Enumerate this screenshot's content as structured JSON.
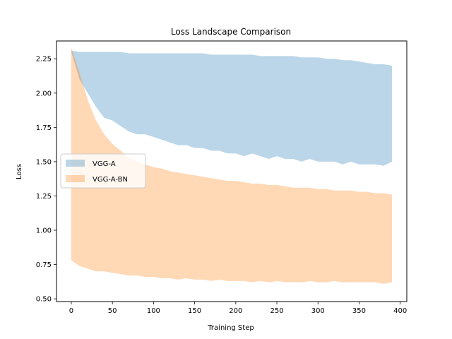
{
  "chart_data": {
    "type": "area",
    "title": "Loss Landscape Comparison",
    "xlabel": "Training Step",
    "ylabel": "Loss",
    "xlim": [
      -18,
      408
    ],
    "ylim": [
      0.48,
      2.38
    ],
    "xticks": [
      0,
      50,
      100,
      150,
      200,
      250,
      300,
      350,
      400
    ],
    "yticks": [
      0.5,
      0.75,
      1.0,
      1.25,
      1.5,
      1.75,
      2.0,
      2.25
    ],
    "ytick_labels": [
      "0.50",
      "0.75",
      "1.00",
      "1.25",
      "1.50",
      "1.75",
      "2.00",
      "2.25"
    ],
    "grid": false,
    "legend_position": "center-left",
    "series": [
      {
        "name": "VGG-A",
        "color": "#1f77b4",
        "alpha": 0.3,
        "x": [
          0,
          10,
          20,
          30,
          40,
          50,
          60,
          70,
          80,
          90,
          100,
          110,
          120,
          130,
          140,
          150,
          160,
          170,
          180,
          190,
          200,
          210,
          220,
          230,
          240,
          250,
          260,
          270,
          280,
          290,
          300,
          310,
          320,
          330,
          340,
          350,
          360,
          370,
          380,
          390
        ],
        "upper": [
          2.31,
          2.3,
          2.3,
          2.3,
          2.3,
          2.3,
          2.3,
          2.29,
          2.29,
          2.29,
          2.29,
          2.29,
          2.29,
          2.29,
          2.29,
          2.29,
          2.29,
          2.28,
          2.28,
          2.28,
          2.28,
          2.28,
          2.28,
          2.27,
          2.27,
          2.27,
          2.27,
          2.27,
          2.26,
          2.26,
          2.26,
          2.25,
          2.25,
          2.24,
          2.24,
          2.23,
          2.22,
          2.21,
          2.21,
          2.2
        ],
        "lower": [
          2.3,
          2.1,
          2.0,
          1.9,
          1.82,
          1.8,
          1.76,
          1.72,
          1.7,
          1.7,
          1.68,
          1.66,
          1.64,
          1.62,
          1.62,
          1.6,
          1.6,
          1.58,
          1.58,
          1.56,
          1.56,
          1.54,
          1.56,
          1.54,
          1.52,
          1.54,
          1.52,
          1.52,
          1.5,
          1.52,
          1.5,
          1.5,
          1.5,
          1.48,
          1.5,
          1.48,
          1.48,
          1.48,
          1.47,
          1.5
        ]
      },
      {
        "name": "VGG-A-BN",
        "color": "#ff7f0e",
        "alpha": 0.3,
        "x": [
          0,
          10,
          20,
          30,
          40,
          50,
          60,
          70,
          80,
          90,
          100,
          110,
          120,
          130,
          140,
          150,
          160,
          170,
          180,
          190,
          200,
          210,
          220,
          230,
          240,
          250,
          260,
          270,
          280,
          290,
          300,
          310,
          320,
          330,
          340,
          350,
          360,
          370,
          380,
          390
        ],
        "upper": [
          2.33,
          2.15,
          1.95,
          1.8,
          1.7,
          1.63,
          1.58,
          1.53,
          1.5,
          1.48,
          1.46,
          1.45,
          1.43,
          1.42,
          1.41,
          1.4,
          1.39,
          1.38,
          1.37,
          1.36,
          1.36,
          1.35,
          1.34,
          1.34,
          1.33,
          1.33,
          1.32,
          1.31,
          1.31,
          1.31,
          1.3,
          1.3,
          1.29,
          1.29,
          1.29,
          1.28,
          1.28,
          1.27,
          1.27,
          1.26
        ],
        "lower": [
          0.78,
          0.74,
          0.72,
          0.7,
          0.7,
          0.69,
          0.68,
          0.67,
          0.67,
          0.66,
          0.66,
          0.65,
          0.65,
          0.64,
          0.65,
          0.64,
          0.64,
          0.63,
          0.64,
          0.63,
          0.63,
          0.63,
          0.62,
          0.63,
          0.62,
          0.63,
          0.62,
          0.62,
          0.62,
          0.63,
          0.62,
          0.62,
          0.63,
          0.62,
          0.62,
          0.62,
          0.62,
          0.62,
          0.61,
          0.62
        ]
      }
    ]
  }
}
